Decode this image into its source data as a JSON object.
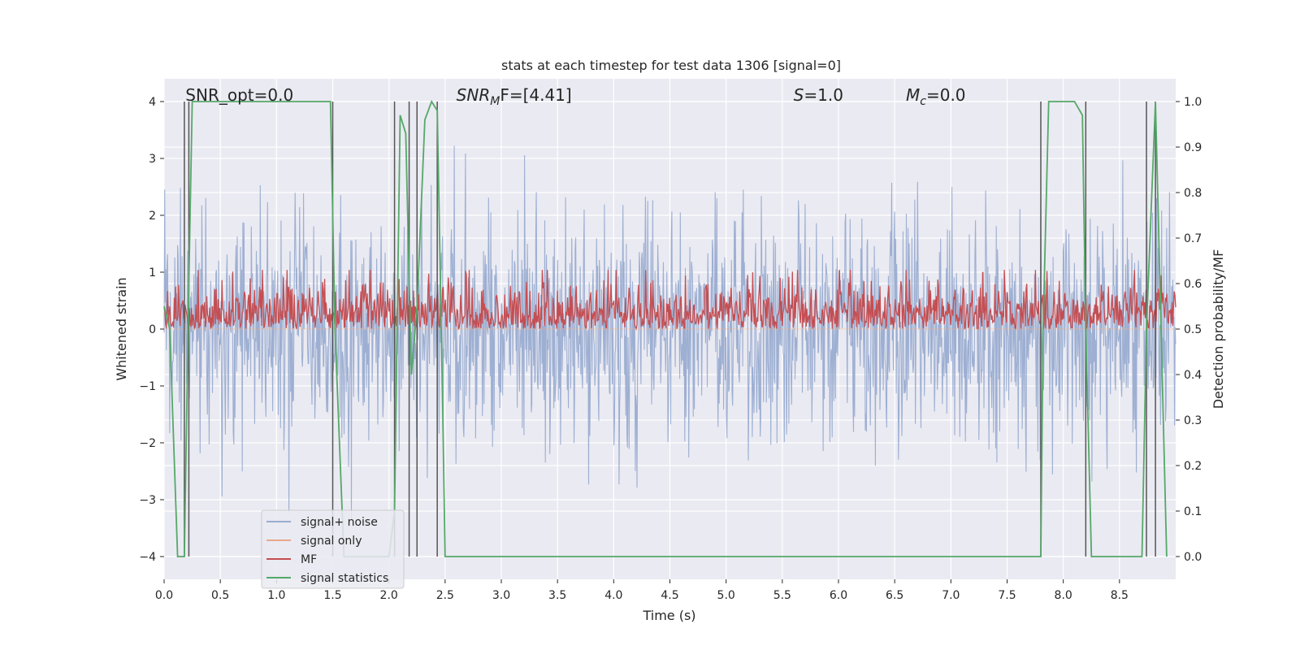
{
  "chart_data": {
    "type": "line",
    "title": "stats at each timestep for test data 1306 [signal=0]",
    "xlabel": "Time (s)",
    "ylabel_left": "Whitened strain",
    "ylabel_right": "Detection probability/MF",
    "xlim": [
      0.0,
      9.0
    ],
    "ylim_left": [
      -4.4,
      4.4
    ],
    "ylim_right": [
      -0.05,
      1.05
    ],
    "grid": true,
    "legend_position": "lower-left",
    "x_ticks": [
      "0.0",
      "0.5",
      "1.0",
      "1.5",
      "2.0",
      "2.5",
      "3.0",
      "3.5",
      "4.0",
      "4.5",
      "5.0",
      "5.5",
      "6.0",
      "6.5",
      "7.0",
      "7.5",
      "8.0",
      "8.5"
    ],
    "y_left_ticks": [
      "4",
      "3",
      "2",
      "1",
      "0",
      "−1",
      "−2",
      "−3",
      "−4"
    ],
    "y_right_ticks": [
      "1.0",
      "0.9",
      "0.8",
      "0.7",
      "0.6",
      "0.5",
      "0.4",
      "0.3",
      "0.2",
      "0.1",
      "0.0"
    ],
    "annotations": [
      {
        "id": "snr-opt",
        "text": "SNR_opt=0.0",
        "x": 0.19
      },
      {
        "id": "snr-mf",
        "prefix": "SNR",
        "sub": "M",
        "suffix": "F=[4.41]",
        "x": 2.6
      },
      {
        "id": "s-val",
        "prefix": "S",
        "suffix": "=1.0",
        "x": 5.6
      },
      {
        "id": "mc-val",
        "prefix": "M",
        "sub": "c",
        "suffix": "=0.0",
        "x": 6.6
      }
    ],
    "series": [
      {
        "name": "signal+ noise",
        "color": "#99acd0",
        "kind": "noise",
        "mean": 0.0,
        "std": 1.0,
        "envelope": 4.0
      },
      {
        "name": "signal only",
        "color": "#e8a88a",
        "kind": "flat",
        "values": [
          0.0
        ]
      },
      {
        "name": "MF",
        "color": "#c44e52",
        "kind": "band",
        "axis": "right",
        "base": 0.5,
        "range": [
          0.5,
          0.61
        ]
      },
      {
        "name": "signal statistics",
        "color": "#55a868",
        "axis": "right",
        "x": [
          0.0,
          0.05,
          0.12,
          0.18,
          0.22,
          0.25,
          1.48,
          1.52,
          1.6,
          1.7,
          2.0,
          2.05,
          2.1,
          2.15,
          2.2,
          2.25,
          2.32,
          2.38,
          2.43,
          2.48,
          2.5,
          3.0,
          7.8,
          7.82,
          7.87,
          8.1,
          8.17,
          8.2,
          8.25,
          8.7,
          8.74,
          8.82,
          8.87,
          8.92
        ],
        "y": [
          0.55,
          0.5,
          0.0,
          0.0,
          0.6,
          1.0,
          1.0,
          0.5,
          0.0,
          0.0,
          0.0,
          0.1,
          0.97,
          0.93,
          0.4,
          0.55,
          0.96,
          1.0,
          0.98,
          0.3,
          0.0,
          0.0,
          0.0,
          0.5,
          1.0,
          1.0,
          0.97,
          0.5,
          0.0,
          0.0,
          0.5,
          1.0,
          0.5,
          0.0
        ]
      }
    ],
    "vlines": [
      0.18,
      0.22,
      1.5,
      2.05,
      2.18,
      2.25,
      2.43,
      7.8,
      8.2,
      8.74,
      8.82
    ],
    "vline_color": "#555555"
  }
}
